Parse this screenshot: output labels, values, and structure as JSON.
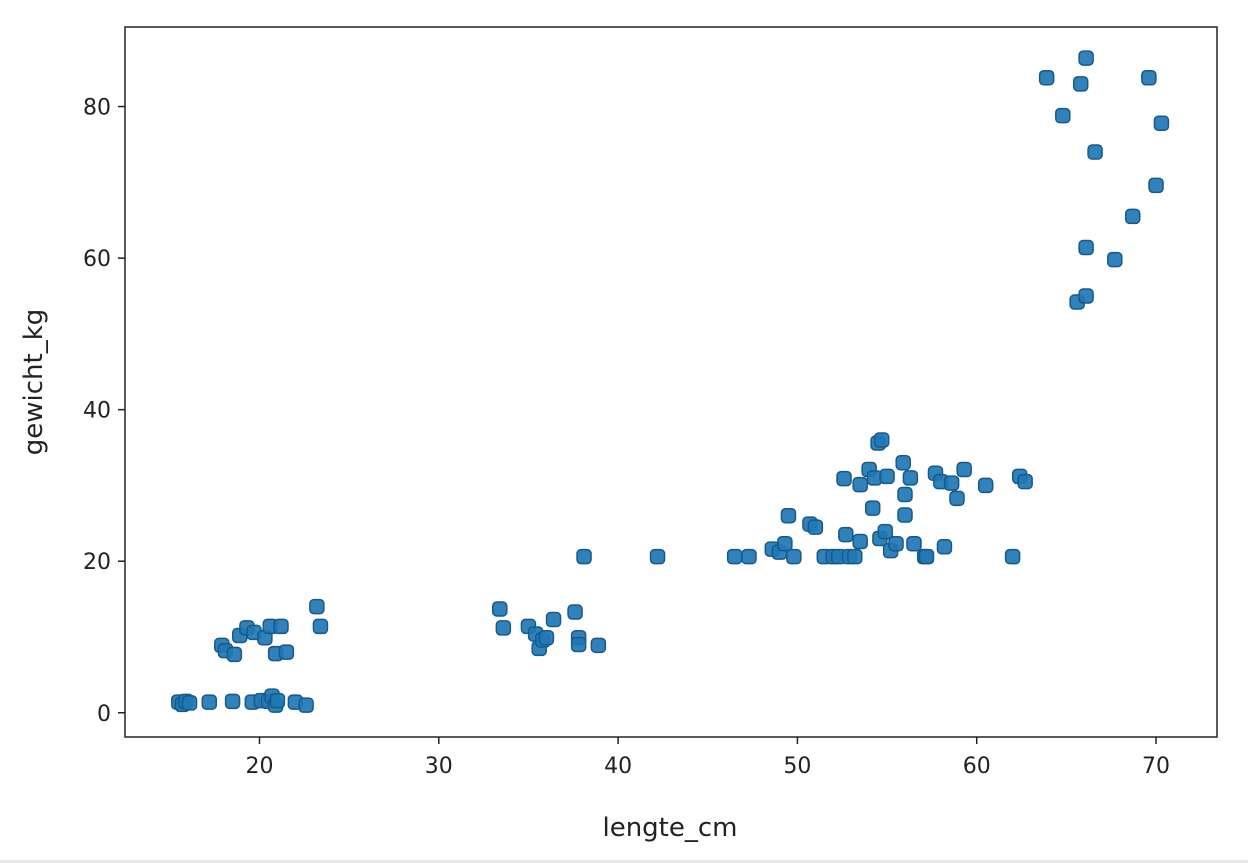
{
  "chart_data": {
    "type": "scatter",
    "title": "",
    "xlabel": "lengte_cm",
    "ylabel": "gewicht_kg",
    "xlim": [
      12.5,
      73.4
    ],
    "ylim": [
      -3.2,
      90.5
    ],
    "xticks": [
      20,
      30,
      40,
      50,
      60,
      70
    ],
    "yticks": [
      0,
      20,
      40,
      60,
      80
    ],
    "grid": false,
    "marker_color": "#1f77b4",
    "marker_edge_color": "#155a8a",
    "series": [
      {
        "points": [
          [
            15.5,
            1.4
          ],
          [
            15.7,
            1.1
          ],
          [
            15.9,
            1.5
          ],
          [
            16.1,
            1.3
          ],
          [
            17.2,
            1.4
          ],
          [
            18.5,
            1.5
          ],
          [
            19.6,
            1.4
          ],
          [
            20.1,
            1.6
          ],
          [
            20.5,
            1.5
          ],
          [
            20.7,
            2.2
          ],
          [
            20.9,
            1.0
          ],
          [
            21.0,
            1.6
          ],
          [
            22.0,
            1.4
          ],
          [
            22.6,
            1.0
          ],
          [
            17.9,
            8.9
          ],
          [
            18.1,
            8.2
          ],
          [
            18.6,
            7.7
          ],
          [
            18.9,
            10.2
          ],
          [
            19.3,
            11.2
          ],
          [
            19.7,
            10.6
          ],
          [
            20.3,
            9.9
          ],
          [
            20.6,
            11.4
          ],
          [
            20.9,
            7.8
          ],
          [
            21.2,
            11.4
          ],
          [
            21.5,
            8.0
          ],
          [
            23.2,
            14.0
          ],
          [
            23.4,
            11.4
          ],
          [
            33.4,
            13.7
          ],
          [
            33.6,
            11.2
          ],
          [
            35.0,
            11.4
          ],
          [
            35.4,
            10.4
          ],
          [
            35.6,
            8.5
          ],
          [
            35.8,
            9.6
          ],
          [
            36.0,
            9.9
          ],
          [
            36.4,
            12.3
          ],
          [
            37.6,
            13.3
          ],
          [
            37.8,
            9.9
          ],
          [
            37.8,
            9.0
          ],
          [
            38.9,
            8.9
          ],
          [
            38.1,
            20.6
          ],
          [
            42.2,
            20.6
          ],
          [
            46.5,
            20.6
          ],
          [
            47.3,
            20.6
          ],
          [
            48.6,
            21.6
          ],
          [
            49.0,
            21.2
          ],
          [
            49.3,
            22.3
          ],
          [
            49.5,
            26.0
          ],
          [
            49.8,
            20.6
          ],
          [
            50.7,
            24.9
          ],
          [
            51.0,
            24.5
          ],
          [
            51.5,
            20.6
          ],
          [
            52.0,
            20.6
          ],
          [
            52.3,
            20.6
          ],
          [
            52.6,
            30.9
          ],
          [
            52.7,
            23.5
          ],
          [
            52.9,
            20.6
          ],
          [
            53.2,
            20.6
          ],
          [
            53.5,
            22.6
          ],
          [
            53.5,
            30.1
          ],
          [
            54.0,
            32.1
          ],
          [
            54.2,
            27.0
          ],
          [
            54.3,
            31.0
          ],
          [
            54.5,
            35.6
          ],
          [
            54.6,
            23.0
          ],
          [
            54.7,
            36.0
          ],
          [
            54.9,
            23.9
          ],
          [
            55.0,
            31.2
          ],
          [
            55.2,
            21.4
          ],
          [
            55.5,
            22.3
          ],
          [
            55.9,
            33.0
          ],
          [
            56.0,
            28.8
          ],
          [
            56.0,
            26.1
          ],
          [
            56.3,
            31.0
          ],
          [
            56.5,
            22.3
          ],
          [
            57.1,
            20.6
          ],
          [
            57.2,
            20.6
          ],
          [
            57.7,
            31.6
          ],
          [
            58.0,
            30.5
          ],
          [
            58.2,
            21.9
          ],
          [
            58.6,
            30.3
          ],
          [
            58.9,
            28.3
          ],
          [
            59.3,
            32.1
          ],
          [
            60.5,
            30.0
          ],
          [
            62.0,
            20.6
          ],
          [
            62.4,
            31.2
          ],
          [
            62.7,
            30.5
          ],
          [
            63.9,
            83.8
          ],
          [
            64.8,
            78.8
          ],
          [
            65.6,
            54.2
          ],
          [
            65.8,
            83.0
          ],
          [
            66.1,
            86.4
          ],
          [
            66.1,
            55.0
          ],
          [
            66.1,
            61.4
          ],
          [
            66.6,
            74.0
          ],
          [
            67.7,
            59.8
          ],
          [
            68.7,
            65.5
          ],
          [
            69.6,
            83.8
          ],
          [
            70.0,
            69.6
          ],
          [
            70.3,
            77.8
          ]
        ]
      }
    ]
  }
}
